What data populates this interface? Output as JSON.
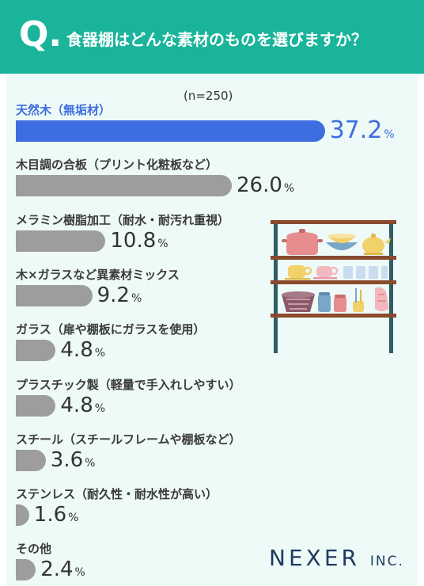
{
  "header": {
    "q_mark": "Q.",
    "question": "食器棚はどんな素材のものを選びますか？"
  },
  "n_note": "(n=250)",
  "chart_data": {
    "type": "bar",
    "orientation": "horizontal",
    "title": "食器棚はどんな素材のものを選びますか？",
    "note": "(n=250)",
    "categories": [
      "天然木（無垢材）",
      "木目調の合板（プリント化粧板など）",
      "メラミン樹脂加工（耐水・耐汚れ重視）",
      "木×ガラスなど異素材ミックス",
      "ガラス（扉や棚板にガラスを使用）",
      "プラスチック製（軽量で手入れしやすい）",
      "スチール（スチールフレームや棚板など）",
      "ステンレス（耐久性・耐水性が高い）",
      "その他"
    ],
    "values": [
      37.2,
      26.0,
      10.8,
      9.2,
      4.8,
      4.8,
      3.6,
      1.6,
      2.4
    ],
    "value_labels": [
      "37.2",
      "26.0",
      "10.8",
      "9.2",
      "4.8",
      "4.8",
      "3.6",
      "1.6",
      "2.4"
    ],
    "unit": "%",
    "highlight_index": 0,
    "colors": {
      "highlight": "#3d6de0",
      "default": "#9d9d9f"
    }
  },
  "logo": {
    "main": "NEXER",
    "sub": "INC."
  },
  "colors": {
    "header": "#1ab49b",
    "panel": "#eefaf7",
    "shelf": "#2e5d63"
  }
}
